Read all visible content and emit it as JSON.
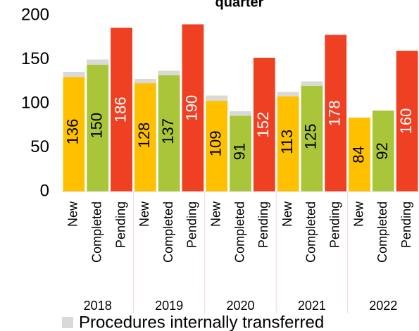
{
  "chart_data": {
    "type": "bar",
    "title": "quarter",
    "categories": [
      "2018",
      "2019",
      "2020",
      "2021",
      "2022"
    ],
    "series": [
      {
        "name": "New",
        "color": "#ffc000",
        "values": [
          136,
          128,
          109,
          113,
          84
        ],
        "transferred": [
          6,
          5,
          6,
          5,
          0
        ]
      },
      {
        "name": "Completed",
        "color": "#a9c63a",
        "values": [
          150,
          137,
          91,
          125,
          92
        ],
        "transferred": [
          6,
          5,
          5,
          5,
          0
        ]
      },
      {
        "name": "Pending",
        "color": "#f04023",
        "values": [
          186,
          190,
          152,
          178,
          160
        ]
      }
    ],
    "transferred_legend": {
      "name": "Procedures internally transferred",
      "color": "#d9d9d9"
    },
    "ylim": [
      0,
      200
    ],
    "yticks": [
      0,
      50,
      100,
      150,
      200
    ]
  }
}
